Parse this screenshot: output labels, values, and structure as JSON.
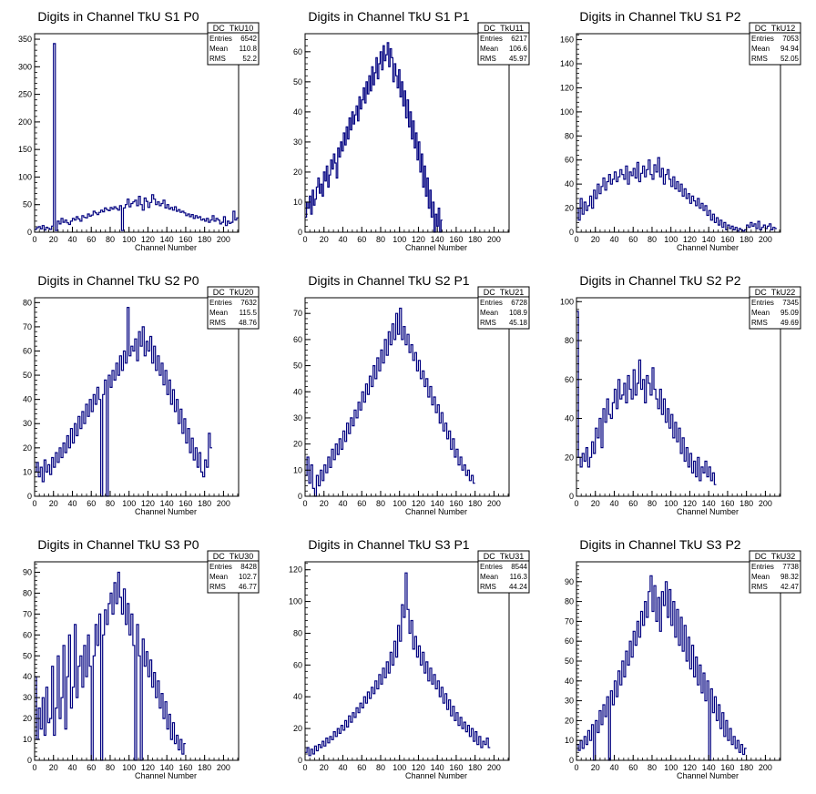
{
  "page": {
    "background": "#ffffff",
    "line_color": "#000080"
  },
  "chart_data": [
    {
      "type": "bar",
      "title": "Digits in Channel TkU S1 P0",
      "xlabel": "Channel Number",
      "ylabel": "",
      "xlim": [
        0,
        216
      ],
      "ylim": [
        0,
        360
      ],
      "xticks": [
        0,
        20,
        40,
        60,
        80,
        100,
        120,
        140,
        160,
        180,
        200
      ],
      "yticks": [
        0,
        50,
        100,
        150,
        200,
        250,
        300,
        350
      ],
      "stats": {
        "name": "DC_TkU10",
        "entries": "6542",
        "mean": "110.8",
        "rms": "52.2"
      },
      "bin_width": 2,
      "values": [
        5,
        8,
        10,
        6,
        12,
        4,
        9,
        7,
        5,
        11,
        342,
        3,
        20,
        15,
        25,
        18,
        22,
        17,
        14,
        20,
        25,
        22,
        28,
        24,
        20,
        30,
        27,
        26,
        33,
        29,
        31,
        38,
        35,
        32,
        36,
        40,
        37,
        44,
        41,
        39,
        45,
        42,
        46,
        43,
        40,
        48,
        3,
        44,
        50,
        60,
        46,
        52,
        55,
        58,
        48,
        65,
        50,
        40,
        62,
        56,
        45,
        54,
        68,
        60,
        50,
        55,
        48,
        52,
        58,
        44,
        50,
        42,
        45,
        40,
        46,
        38,
        41,
        36,
        38,
        35,
        30,
        33,
        28,
        32,
        25,
        30,
        26,
        28,
        22,
        24,
        20,
        25,
        18,
        22,
        30,
        20,
        25,
        22,
        15,
        18,
        28,
        12,
        20,
        16,
        18,
        38,
        22,
        26
      ]
    },
    {
      "type": "bar",
      "title": "Digits in Channel TkU S1 P1",
      "xlabel": "Channel Number",
      "ylabel": "",
      "xlim": [
        0,
        216
      ],
      "ylim": [
        0,
        66
      ],
      "xticks": [
        0,
        20,
        40,
        60,
        80,
        100,
        120,
        140,
        160,
        180,
        200
      ],
      "yticks": [
        0,
        10,
        20,
        30,
        40,
        50,
        60
      ],
      "stats": {
        "name": "DC_TkU11",
        "entries": "6217",
        "mean": "106.6",
        "rms": "45.97"
      },
      "bin_width": 1.5,
      "values": [
        5,
        10,
        8,
        12,
        6,
        14,
        9,
        11,
        15,
        18,
        13,
        16,
        12,
        20,
        17,
        22,
        15,
        19,
        24,
        21,
        26,
        23,
        18,
        28,
        25,
        30,
        27,
        33,
        29,
        35,
        31,
        38,
        34,
        40,
        36,
        39,
        42,
        37,
        45,
        41,
        44,
        48,
        43,
        50,
        46,
        52,
        47,
        55,
        49,
        53,
        58,
        51,
        56,
        60,
        54,
        62,
        57,
        59,
        63,
        55,
        61,
        58,
        50,
        56,
        52,
        48,
        54,
        45,
        50,
        42,
        47,
        38,
        44,
        35,
        40,
        31,
        37,
        28,
        33,
        24,
        30,
        20,
        26,
        15,
        22,
        12,
        18,
        8,
        14,
        5,
        10,
        0,
        6,
        2,
        8,
        0,
        4
      ]
    },
    {
      "type": "bar",
      "title": "Digits in Channel TkU S1 P2",
      "xlabel": "Channel Number",
      "ylabel": "",
      "xlim": [
        0,
        216
      ],
      "ylim": [
        0,
        165
      ],
      "xticks": [
        0,
        20,
        40,
        60,
        80,
        100,
        120,
        140,
        160,
        180,
        200
      ],
      "yticks": [
        0,
        20,
        40,
        60,
        80,
        100,
        120,
        140,
        160
      ],
      "stats": {
        "name": "DC_TkU12",
        "entries": "7053",
        "mean": "94.94",
        "rms": "52.05"
      },
      "bin_width": 2,
      "values": [
        20,
        10,
        28,
        15,
        25,
        18,
        22,
        30,
        20,
        35,
        28,
        40,
        32,
        38,
        45,
        35,
        42,
        48,
        40,
        44,
        50,
        42,
        46,
        52,
        48,
        44,
        55,
        40,
        50,
        47,
        53,
        45,
        58,
        42,
        49,
        55,
        46,
        52,
        60,
        48,
        44,
        56,
        50,
        62,
        46,
        53,
        40,
        48,
        52,
        44,
        38,
        46,
        36,
        42,
        34,
        40,
        30,
        36,
        28,
        32,
        24,
        30,
        26,
        22,
        28,
        20,
        24,
        18,
        22,
        14,
        18,
        10,
        15,
        8,
        12,
        6,
        10,
        4,
        8,
        2,
        6,
        3,
        5,
        2,
        4,
        1,
        3,
        2,
        1,
        2,
        6,
        4,
        8,
        5,
        7,
        3,
        9,
        2,
        4,
        6,
        3,
        5,
        7,
        2,
        4,
        3
      ]
    },
    {
      "type": "bar",
      "title": "Digits in Channel TkU S2 P0",
      "xlabel": "Channel Number",
      "ylabel": "",
      "xlim": [
        0,
        216
      ],
      "ylim": [
        0,
        82
      ],
      "xticks": [
        0,
        20,
        40,
        60,
        80,
        100,
        120,
        140,
        160,
        180,
        200
      ],
      "yticks": [
        0,
        10,
        20,
        30,
        40,
        50,
        60,
        70,
        80
      ],
      "stats": {
        "name": "DC_TkU20",
        "entries": "7632",
        "mean": "115.5",
        "rms": "48.76"
      },
      "bin_width": 2,
      "values": [
        10,
        14,
        8,
        12,
        6,
        15,
        10,
        13,
        9,
        16,
        12,
        18,
        14,
        20,
        16,
        22,
        18,
        25,
        20,
        28,
        22,
        30,
        25,
        33,
        28,
        35,
        30,
        38,
        33,
        40,
        35,
        42,
        38,
        45,
        40,
        0,
        42,
        48,
        0,
        50,
        45,
        52,
        48,
        55,
        50,
        58,
        52,
        60,
        55,
        78,
        58,
        62,
        60,
        65,
        56,
        68,
        62,
        70,
        58,
        64,
        60,
        66,
        55,
        62,
        52,
        58,
        50,
        55,
        46,
        52,
        42,
        48,
        38,
        44,
        35,
        40,
        30,
        36,
        26,
        32,
        22,
        28,
        18,
        24,
        15,
        20,
        12,
        18,
        10,
        8,
        15,
        12,
        26,
        20
      ]
    },
    {
      "type": "bar",
      "title": "Digits in Channel TkU S2 P1",
      "xlabel": "Channel Number",
      "ylabel": "",
      "xlim": [
        0,
        216
      ],
      "ylim": [
        0,
        76
      ],
      "xticks": [
        0,
        20,
        40,
        60,
        80,
        100,
        120,
        140,
        160,
        180,
        200
      ],
      "yticks": [
        0,
        10,
        20,
        30,
        40,
        50,
        60,
        70
      ],
      "stats": {
        "name": "DC_TkU21",
        "entries": "6728",
        "mean": "108.9",
        "rms": "45.18"
      },
      "bin_width": 2,
      "values": [
        8,
        15,
        5,
        12,
        3,
        0,
        8,
        4,
        10,
        6,
        12,
        9,
        15,
        11,
        18,
        14,
        20,
        16,
        22,
        18,
        25,
        21,
        28,
        24,
        30,
        27,
        33,
        30,
        36,
        33,
        40,
        36,
        43,
        39,
        46,
        42,
        50,
        45,
        53,
        48,
        56,
        51,
        60,
        54,
        63,
        58,
        66,
        60,
        70,
        62,
        72,
        60,
        65,
        58,
        62,
        55,
        58,
        52,
        55,
        48,
        52,
        45,
        48,
        42,
        45,
        38,
        42,
        35,
        38,
        32,
        35,
        28,
        32,
        25,
        28,
        22,
        25,
        18,
        22,
        15,
        18,
        12,
        15,
        10,
        12,
        8,
        10,
        6,
        8,
        5
      ]
    },
    {
      "type": "bar",
      "title": "Digits in Channel TkU S2 P2",
      "xlabel": "Channel Number",
      "ylabel": "",
      "xlim": [
        0,
        216
      ],
      "ylim": [
        0,
        102
      ],
      "xticks": [
        0,
        20,
        40,
        60,
        80,
        100,
        120,
        140,
        160,
        180,
        200
      ],
      "yticks": [
        0,
        20,
        40,
        60,
        80,
        100
      ],
      "stats": {
        "name": "DC_TkU22",
        "entries": "7345",
        "mean": "95.09",
        "rms": "49.69"
      },
      "bin_width": 2,
      "values": [
        95,
        20,
        15,
        22,
        18,
        25,
        15,
        20,
        28,
        22,
        35,
        30,
        40,
        25,
        45,
        38,
        50,
        42,
        40,
        48,
        55,
        45,
        60,
        50,
        52,
        58,
        48,
        62,
        55,
        50,
        65,
        52,
        58,
        70,
        55,
        60,
        48,
        62,
        58,
        52,
        66,
        55,
        50,
        45,
        55,
        42,
        50,
        38,
        45,
        35,
        42,
        30,
        38,
        28,
        35,
        22,
        30,
        18,
        25,
        15,
        22,
        12,
        18,
        10,
        20,
        8,
        15,
        12,
        18,
        10,
        15,
        8,
        12,
        6
      ]
    },
    {
      "type": "bar",
      "title": "Digits in Channel TkU S3 P0",
      "xlabel": "Channel Number",
      "ylabel": "",
      "xlim": [
        0,
        216
      ],
      "ylim": [
        0,
        95
      ],
      "xticks": [
        0,
        20,
        40,
        60,
        80,
        100,
        120,
        140,
        160,
        180,
        200
      ],
      "yticks": [
        0,
        10,
        20,
        30,
        40,
        50,
        60,
        70,
        80,
        90
      ],
      "stats": {
        "name": "DC_TkU30",
        "entries": "8428",
        "mean": "102.7",
        "rms": "46.77"
      },
      "bin_width": 2,
      "values": [
        40,
        10,
        25,
        15,
        30,
        12,
        35,
        18,
        20,
        45,
        12,
        25,
        50,
        20,
        30,
        55,
        15,
        40,
        60,
        25,
        35,
        65,
        30,
        45,
        50,
        35,
        55,
        40,
        60,
        45,
        0,
        50,
        65,
        55,
        70,
        0,
        60,
        72,
        65,
        75,
        80,
        70,
        85,
        75,
        90,
        78,
        70,
        82,
        65,
        75,
        60,
        70,
        55,
        0,
        65,
        50,
        0,
        58,
        45,
        52,
        40,
        48,
        35,
        42,
        30,
        38,
        25,
        32,
        20,
        28,
        15,
        22,
        10,
        18,
        8,
        12,
        5,
        10,
        3,
        8
      ]
    },
    {
      "type": "bar",
      "title": "Digits in Channel TkU S3 P1",
      "xlabel": "Channel Number",
      "ylabel": "",
      "xlim": [
        0,
        216
      ],
      "ylim": [
        0,
        125
      ],
      "xticks": [
        0,
        20,
        40,
        60,
        80,
        100,
        120,
        140,
        160,
        180,
        200
      ],
      "yticks": [
        0,
        20,
        40,
        60,
        80,
        100,
        120
      ],
      "stats": {
        "name": "DC_TkU31",
        "entries": "8544",
        "mean": "116.3",
        "rms": "44.24"
      },
      "bin_width": 2,
      "values": [
        5,
        8,
        3,
        7,
        4,
        9,
        6,
        10,
        8,
        12,
        9,
        14,
        11,
        15,
        13,
        18,
        15,
        20,
        17,
        22,
        19,
        25,
        21,
        28,
        24,
        30,
        27,
        33,
        30,
        36,
        33,
        40,
        36,
        43,
        39,
        46,
        42,
        50,
        45,
        54,
        48,
        58,
        52,
        62,
        55,
        68,
        60,
        75,
        65,
        85,
        75,
        98,
        90,
        118,
        95,
        80,
        88,
        70,
        78,
        65,
        72,
        60,
        68,
        55,
        62,
        50,
        58,
        48,
        54,
        45,
        50,
        40,
        46,
        36,
        42,
        32,
        38,
        28,
        34,
        25,
        30,
        22,
        27,
        20,
        24,
        18,
        22,
        15,
        20,
        12,
        18,
        10,
        15,
        8,
        12,
        10,
        14,
        8
      ]
    },
    {
      "type": "bar",
      "title": "Digits in Channel TkU S3 P2",
      "xlabel": "Channel Number",
      "ylabel": "",
      "xlim": [
        0,
        216
      ],
      "ylim": [
        0,
        100
      ],
      "xticks": [
        0,
        20,
        40,
        60,
        80,
        100,
        120,
        140,
        160,
        180,
        200
      ],
      "yticks": [
        0,
        10,
        20,
        30,
        40,
        50,
        60,
        70,
        80,
        90
      ],
      "stats": {
        "name": "DC_TkU32",
        "entries": "7738",
        "mean": "98.32",
        "rms": "42.47"
      },
      "bin_width": 2,
      "values": [
        8,
        5,
        10,
        6,
        12,
        8,
        15,
        10,
        18,
        0,
        20,
        14,
        25,
        18,
        28,
        22,
        32,
        0,
        35,
        28,
        40,
        32,
        45,
        38,
        50,
        42,
        55,
        48,
        60,
        52,
        65,
        58,
        70,
        62,
        75,
        68,
        80,
        72,
        85,
        93,
        75,
        88,
        70,
        82,
        65,
        85,
        78,
        90,
        72,
        86,
        68,
        80,
        62,
        76,
        58,
        72,
        55,
        68,
        50,
        62,
        46,
        58,
        42,
        52,
        38,
        48,
        34,
        44,
        30,
        40,
        0,
        36,
        24,
        32,
        20,
        28,
        16,
        24,
        12,
        20,
        10,
        16,
        8,
        12,
        6,
        10,
        4,
        8,
        3,
        6
      ]
    }
  ]
}
